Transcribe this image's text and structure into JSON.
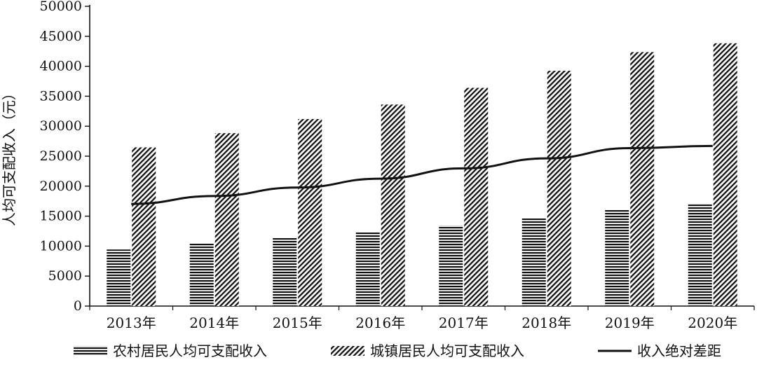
{
  "chart_data": {
    "type": "bar",
    "categories": [
      "2013年",
      "2014年",
      "2015年",
      "2016年",
      "2017年",
      "2018年",
      "2019年",
      "2020年"
    ],
    "ylabel": "人均可支配收入（元）",
    "ylim": [
      0,
      50000
    ],
    "yticks": [
      0,
      5000,
      10000,
      15000,
      20000,
      25000,
      30000,
      35000,
      40000,
      45000,
      50000
    ],
    "grid": false,
    "legend_position": "bottom",
    "series": [
      {
        "name": "农村居民人均可支配收入",
        "kind": "bar",
        "pattern": "horizontal-stripes",
        "values": [
          9430,
          10489,
          11422,
          12363,
          13432,
          14617,
          16021,
          17131
        ]
      },
      {
        "name": "城镇居民人均可支配收入",
        "kind": "bar",
        "pattern": "diagonal-hatch",
        "values": [
          26467,
          28844,
          31195,
          33616,
          36396,
          39251,
          42359,
          43834
        ]
      },
      {
        "name": "收入绝对差距",
        "kind": "line",
        "values": [
          17037,
          18355,
          19773,
          21253,
          22964,
          24634,
          26338,
          26703
        ]
      }
    ],
    "colors": {
      "ink": "#111111",
      "background": "#ffffff"
    }
  }
}
